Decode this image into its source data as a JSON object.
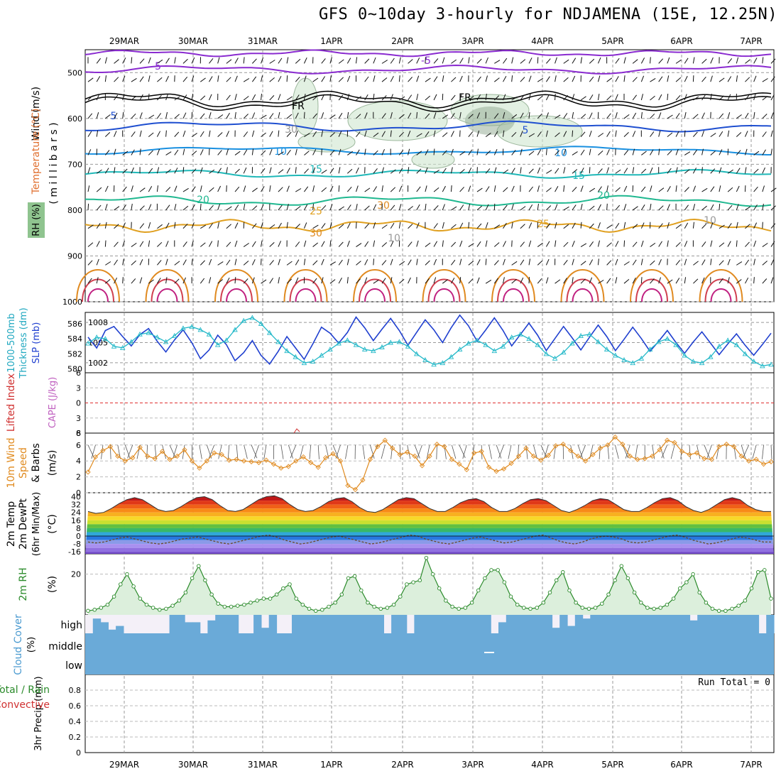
{
  "title": "GFS 0~10day 3-hourly for NDJAMENA (15E, 12.25N)",
  "run_total": "Run Total = 0",
  "dates": [
    "29MAR",
    "30MAR",
    "31MAR",
    "1APR",
    "2APR",
    "3APR",
    "4APR",
    "5APR",
    "6APR",
    "7APR"
  ],
  "panel_labels": {
    "upper": {
      "wind": "Wind (m/s)",
      "temperature": "Temperature (°C)",
      "rh": "RH (%)",
      "pressure": "( m i l l i b a r s )"
    },
    "thickness": {
      "a": "1000-500mb",
      "b": "Thickness (dm)",
      "slp": "SLP (mb)"
    },
    "li": {
      "li": "Lifted Index",
      "cape": "CAPE (J/kg)"
    },
    "wind10": {
      "a": "10m Wind",
      "b": "Speed",
      "c": "& Barbs",
      "unit": "(m/s)"
    },
    "temp2m": {
      "a": "2m Temp",
      "b": "2m DewPt",
      "c": "(6hr Min/Max)",
      "unit": "(°C)"
    },
    "rh2m": {
      "a": "2m RH",
      "unit": "(%)"
    },
    "cloud": {
      "a": "Cloud Cover",
      "unit": "(%)",
      "high": "high",
      "middle": "middle",
      "low": "low"
    },
    "precip": {
      "a": "Total / Rain",
      "b": "Convective",
      "c": "3hr Precip (mm)"
    }
  },
  "colors": {
    "slp": "#1f3fcf",
    "thickness": "#22b8c8",
    "wind10": "#e08a1e",
    "rh2m": "#2a8a2a",
    "rh2m_fill": "#dcefdc",
    "cloud": "#6aaad8",
    "li_zero": "#e03030"
  },
  "chart_data": [
    {
      "type": "line",
      "name": "upper-air",
      "ylabel": "millibars",
      "yticks": [
        500,
        600,
        700,
        800,
        900,
        1000
      ],
      "ylim": [
        1000,
        450
      ],
      "contour_labels": [
        "-5",
        "-5",
        "5",
        "5",
        "10",
        "10",
        "15",
        "15",
        "20",
        "20",
        "25",
        "25",
        "30",
        "30",
        "10",
        "10",
        "30",
        "FR",
        "FR"
      ]
    },
    {
      "type": "line",
      "name": "thickness-slp",
      "yticks_left": [
        580,
        582,
        584,
        586
      ],
      "yticks_right": [
        1002,
        1005,
        1008
      ],
      "series": [
        {
          "name": "SLP (mb)",
          "values": [
            1005.8,
            1004.2,
            1006.8,
            1007.4,
            1005.9,
            1004.5,
            1006.2,
            1007.1,
            1005.2,
            1003.6,
            1005.4,
            1006.9,
            1005.0,
            1002.6,
            1003.9,
            1006.1,
            1004.7,
            1002.3,
            1003.5,
            1005.3,
            1003.1,
            1001.8,
            1003.7,
            1005.9,
            1004.2,
            1002.5,
            1004.8,
            1007.3,
            1006.4,
            1004.9,
            1006.5,
            1008.8,
            1007.2,
            1005.3,
            1007.0,
            1008.6,
            1006.8,
            1004.6,
            1006.5,
            1008.4,
            1006.9,
            1005.0,
            1007.2,
            1009.1,
            1007.5,
            1005.2,
            1006.9,
            1008.7,
            1006.8,
            1004.5,
            1006.2,
            1007.9,
            1006.1,
            1003.8,
            1005.6,
            1007.4,
            1005.7,
            1003.9,
            1005.8,
            1007.6,
            1005.9,
            1003.8,
            1005.5,
            1007.3,
            1005.6,
            1003.7,
            1005.2,
            1006.8,
            1005.0,
            1003.4,
            1005.1,
            1006.6,
            1004.9,
            1003.2,
            1004.8,
            1006.3,
            1004.6,
            1003.1,
            1004.7,
            1006.4
          ]
        },
        {
          "name": "Thickness (dm)",
          "values": [
            583.4,
            584.2,
            584.0,
            583.0,
            582.8,
            583.6,
            584.6,
            584.8,
            584.2,
            583.6,
            584.4,
            585.4,
            585.6,
            585.2,
            584.6,
            583.2,
            583.8,
            585.2,
            586.4,
            586.8,
            586.0,
            584.8,
            583.6,
            582.4,
            581.6,
            580.8,
            581.0,
            581.8,
            582.6,
            583.4,
            583.8,
            583.2,
            582.6,
            582.4,
            582.9,
            583.5,
            583.6,
            583.0,
            582.0,
            581.2,
            580.6,
            580.8,
            581.6,
            582.6,
            583.4,
            583.8,
            583.2,
            582.4,
            583.0,
            584.2,
            584.6,
            584.0,
            583.2,
            582.0,
            581.4,
            582.2,
            583.4,
            584.4,
            584.6,
            583.6,
            582.6,
            581.8,
            581.2,
            580.8,
            581.4,
            582.6,
            583.6,
            584.0,
            583.2,
            581.8,
            581.0,
            580.8,
            581.6,
            583.0,
            583.8,
            583.2,
            582.0,
            581.0,
            580.4,
            580.6
          ]
        }
      ]
    },
    {
      "type": "line",
      "name": "lifted-index-cape",
      "yticks": [
        -6,
        -3,
        0,
        3,
        6
      ],
      "ylim": [
        -6,
        6
      ],
      "cape_tick": 8
    },
    {
      "type": "line",
      "name": "wind10m",
      "yticks": [
        0,
        2,
        4,
        6
      ],
      "ylim": [
        0,
        7.5
      ],
      "values": [
        2.6,
        4.5,
        5.3,
        5.8,
        4.6,
        4.0,
        4.4,
        5.7,
        4.6,
        4.3,
        5.2,
        4.2,
        4.6,
        5.4,
        4.0,
        3.1,
        4.0,
        5.0,
        4.8,
        4.1,
        4.2,
        4.0,
        3.9,
        3.8,
        4.1,
        3.6,
        3.1,
        3.3,
        4.0,
        4.5,
        3.8,
        3.2,
        4.4,
        4.9,
        4.0,
        0.9,
        0.4,
        1.6,
        4.2,
        5.8,
        6.6,
        5.6,
        4.8,
        5.1,
        4.6,
        3.4,
        4.6,
        6.1,
        5.8,
        4.2,
        3.6,
        2.9,
        5.0,
        5.2,
        3.2,
        2.7,
        3.0,
        3.7,
        4.6,
        5.6,
        4.6,
        4.1,
        4.7,
        5.9,
        6.1,
        5.3,
        4.6,
        4.0,
        4.8,
        5.6,
        6.0,
        7.0,
        6.1,
        4.6,
        4.2,
        4.3,
        4.6,
        5.4,
        6.6,
        6.3,
        5.2,
        4.8,
        5.0,
        4.3,
        4.2,
        5.8,
        6.1,
        5.8,
        4.6,
        4.0,
        4.2,
        3.6,
        3.9
      ]
    },
    {
      "type": "area",
      "name": "temp2m",
      "yticks": [
        -16,
        -8,
        0,
        8,
        16,
        24,
        32,
        40
      ],
      "ylim": [
        -18,
        44
      ],
      "series": [
        {
          "name": "2m Temp",
          "values": [
            25,
            23,
            24,
            28,
            33,
            37,
            39,
            37,
            32,
            27,
            25,
            26,
            30,
            35,
            39,
            40,
            37,
            31,
            26,
            25,
            27,
            32,
            37,
            40,
            41,
            38,
            32,
            27,
            25,
            26,
            30,
            35,
            38,
            39,
            35,
            29,
            25,
            24,
            27,
            32,
            37,
            39,
            38,
            33,
            28,
            25,
            25,
            29,
            34,
            37,
            38,
            35,
            29,
            25,
            25,
            28,
            33,
            37,
            38,
            36,
            31,
            26,
            24,
            27,
            31,
            36,
            38,
            37,
            32,
            27,
            25,
            25,
            29,
            34,
            38,
            39,
            36,
            30,
            26,
            24,
            27,
            32,
            37,
            39,
            37,
            31,
            27,
            25,
            25
          ]
        },
        {
          "name": "2m DewPt",
          "values": [
            -6,
            -7,
            -6,
            -4,
            -2,
            -1,
            -3,
            -5,
            -7,
            -8,
            -7,
            -5,
            -3,
            -2,
            -1,
            -3,
            -5,
            -7,
            -8,
            -6,
            -4,
            -2,
            0,
            1,
            -1,
            -4,
            -6,
            -8,
            -7,
            -5,
            -3,
            -1,
            0,
            -2,
            -4,
            -6,
            -8,
            -7,
            -5,
            -3,
            -1,
            1,
            0,
            -3,
            -5,
            -7,
            -8,
            -6,
            -4,
            -2,
            -1,
            -3,
            -5,
            -7,
            -6,
            -4,
            -2,
            0,
            1,
            -2,
            -5,
            -7,
            -8,
            -6,
            -3,
            -1,
            0,
            -1,
            -3,
            -6,
            -7,
            -6,
            -4,
            -2,
            0,
            1,
            -1,
            -4,
            -6,
            -8,
            -7,
            -5,
            -3,
            -1,
            -2,
            -4,
            -6,
            -6
          ]
        }
      ]
    },
    {
      "type": "area",
      "name": "rh2m",
      "yticks": [
        20
      ],
      "ylim": [
        0,
        30
      ],
      "values": [
        2,
        2.5,
        3.5,
        5,
        9,
        15,
        20,
        14,
        8,
        5,
        3.5,
        2.5,
        3,
        4.5,
        7,
        11,
        18,
        24,
        17,
        10,
        5.5,
        4,
        4,
        4.5,
        5,
        6,
        7,
        8,
        8,
        10,
        13,
        15,
        8,
        5,
        3,
        2,
        2.5,
        4,
        6,
        10,
        18,
        19,
        12,
        6,
        4,
        3,
        3.5,
        5,
        9,
        15,
        16,
        17,
        28,
        20,
        13,
        7,
        4,
        3,
        3.5,
        6,
        12,
        18,
        22,
        22,
        16,
        9,
        5,
        3.5,
        3,
        3.5,
        6,
        11,
        17,
        21,
        12,
        6,
        3.5,
        3,
        3.5,
        5.5,
        10,
        17,
        24,
        18,
        11,
        6,
        3.5,
        3,
        3.5,
        5,
        8,
        13,
        16,
        20,
        11,
        6,
        3,
        2,
        2,
        3,
        4.5,
        7,
        13,
        21,
        22,
        8
      ]
    },
    {
      "type": "heatmap",
      "name": "cloud-cover",
      "high": [
        0,
        80,
        60,
        20,
        40,
        0,
        0,
        0,
        0,
        0,
        0,
        100,
        100,
        60,
        60,
        0,
        70,
        100,
        100,
        100,
        0,
        0,
        100,
        30,
        100,
        0,
        0,
        100,
        100,
        100,
        100,
        100,
        100,
        100,
        100,
        100,
        100,
        100,
        100,
        0,
        100,
        100,
        0,
        100,
        100,
        100,
        100,
        100,
        100,
        100,
        100,
        100,
        100,
        0,
        60,
        100,
        100,
        100,
        100,
        100,
        100,
        30,
        100,
        40,
        100,
        80,
        100,
        100,
        100,
        100,
        100,
        100,
        100,
        100,
        100,
        100,
        100,
        100,
        100,
        70,
        100,
        100,
        100,
        100,
        100,
        100,
        100,
        100,
        0,
        100
      ],
      "middle": 100,
      "low": 100
    },
    {
      "type": "line",
      "name": "precip",
      "yticks": [
        0,
        0.2,
        0.4,
        0.6,
        0.8
      ],
      "ylim": [
        0,
        1
      ],
      "values": []
    }
  ]
}
